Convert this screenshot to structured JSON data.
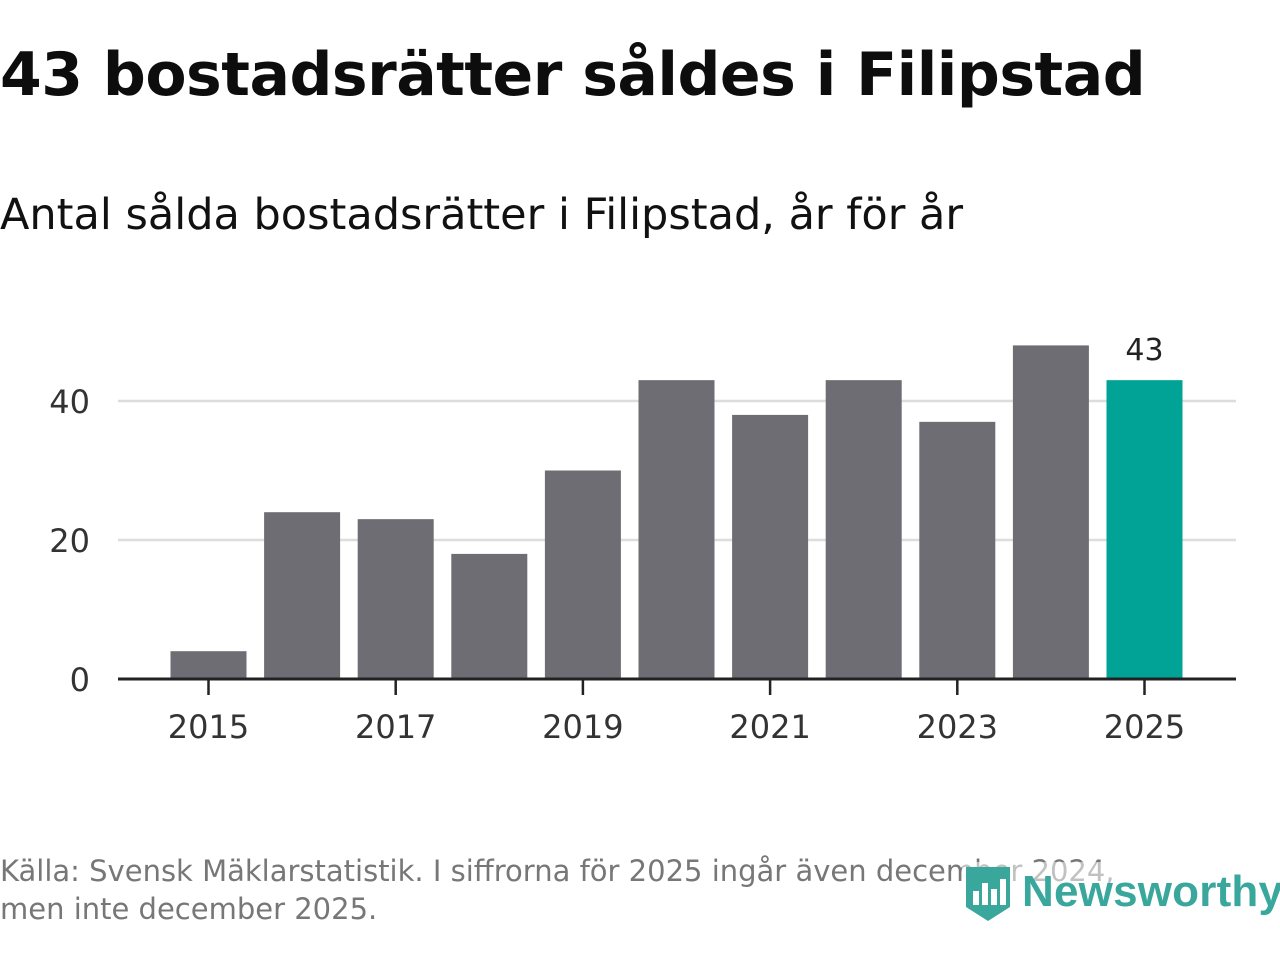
{
  "title": "43 bostadsrätter såldes i Filipstad",
  "subtitle": "Antal sålda bostadsrätter i Filipstad, år för år",
  "chart_data": {
    "type": "bar",
    "categories": [
      "2015",
      "2016",
      "2017",
      "2018",
      "2019",
      "2020",
      "2021",
      "2022",
      "2023",
      "2024",
      "2025"
    ],
    "values": [
      4,
      24,
      23,
      18,
      30,
      43,
      38,
      43,
      37,
      48,
      43
    ],
    "x_tick_labels": [
      "2015",
      "2017",
      "2019",
      "2021",
      "2023",
      "2025"
    ],
    "y_ticks": [
      0,
      20,
      40
    ],
    "ylim": [
      0,
      52
    ],
    "highlight_index": 10,
    "data_label": "43",
    "grid": true,
    "xlabel": "",
    "ylabel": "",
    "colors": {
      "bar": "#6e6d73",
      "highlight": "#00a396",
      "grid": "#dddddd",
      "axis": "#222222",
      "tick_text": "#333333"
    }
  },
  "footer": {
    "line1": "Källa: Svensk Mäklarstatistik. I siffrorna för 2025 ingår även december 2024,",
    "line2": "men inte december 2025."
  },
  "logo": {
    "text": "Newsworthy",
    "icon": "newsworthy-logo-icon",
    "color": "#3aa79c"
  }
}
